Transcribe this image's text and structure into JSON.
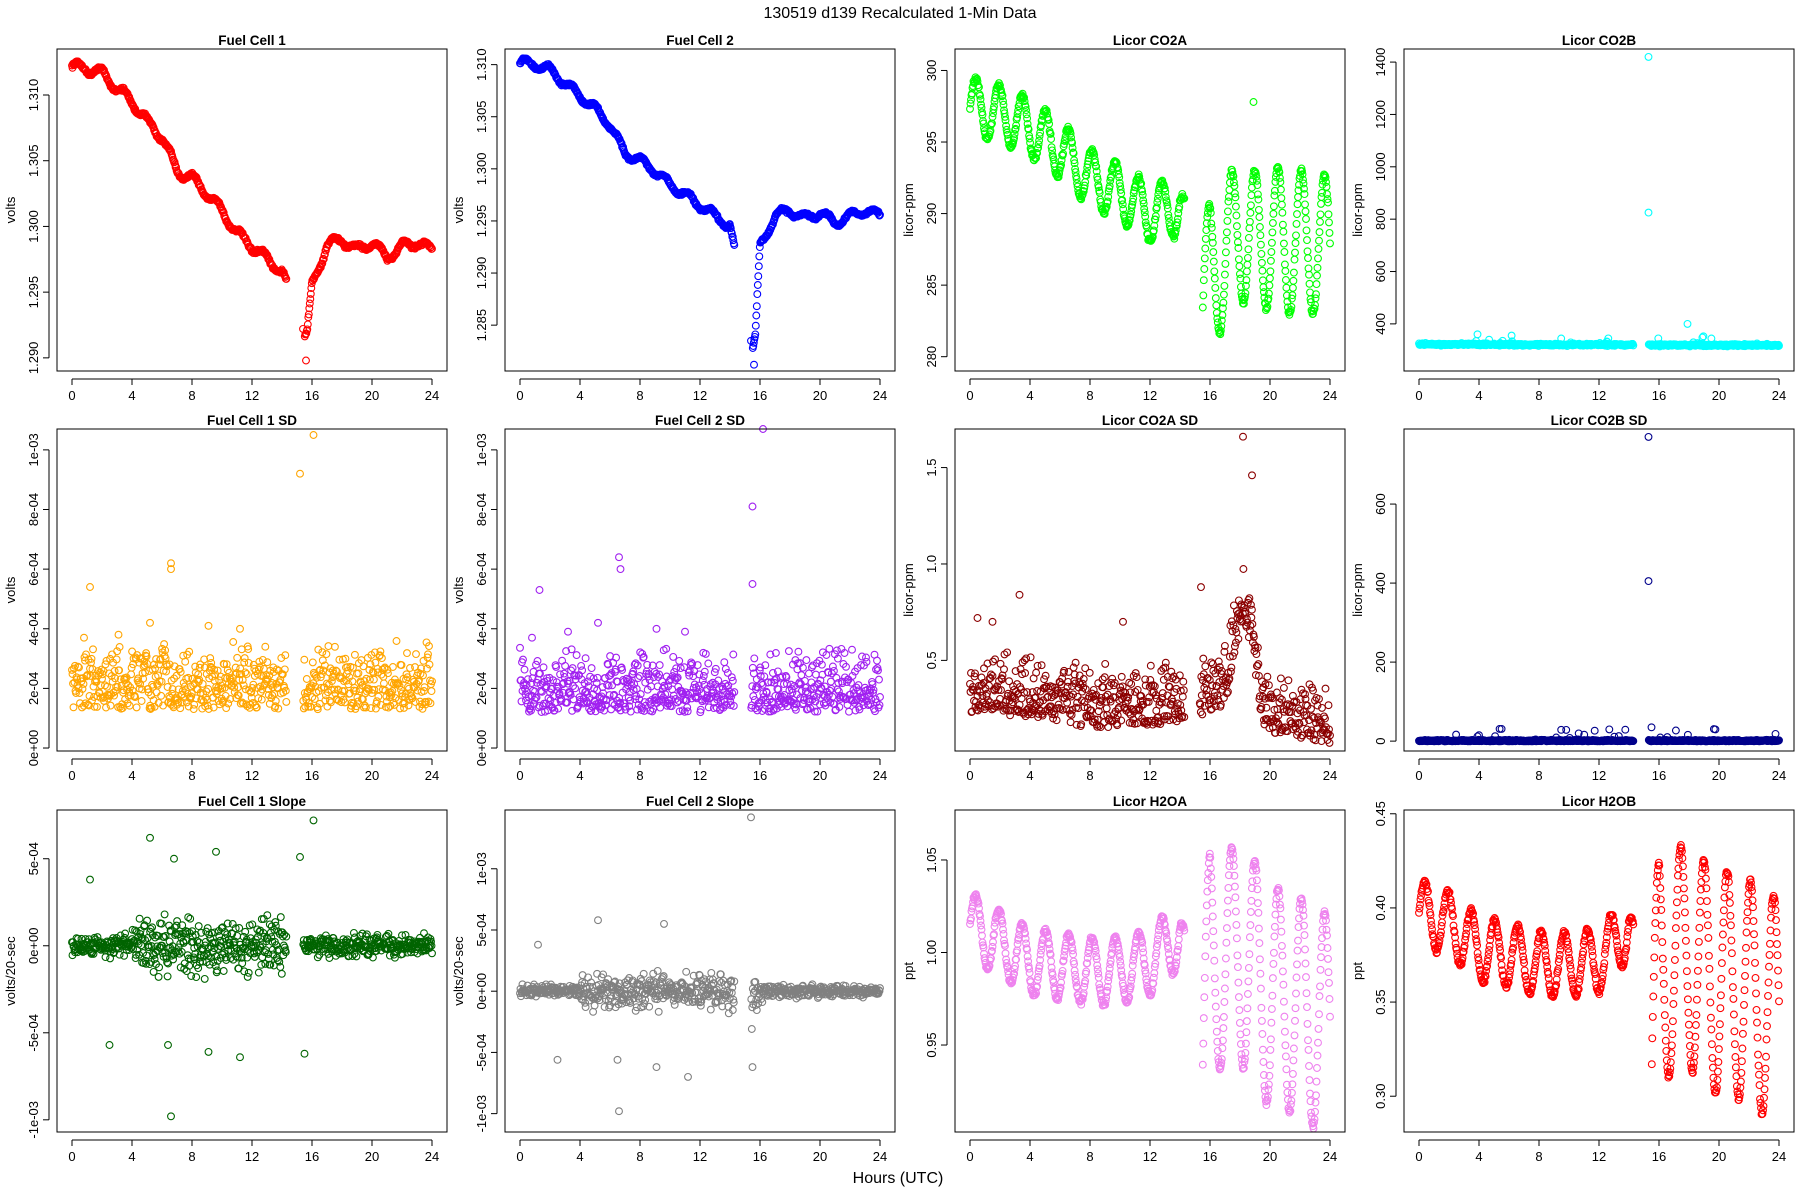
{
  "figure": {
    "title": "130519   d139   Recalculated 1-Min Data",
    "xlabel": "Hours (UTC)"
  },
  "chart_data": [
    {
      "type": "scatter",
      "title": "Fuel Cell 1",
      "xlabel": "",
      "ylabel": "volts",
      "color": "#ff0000",
      "xlim": [
        -1,
        25
      ],
      "ylim": [
        1.289,
        1.3135
      ],
      "xticks": [
        "0",
        "4",
        "8",
        "12",
        "16",
        "20",
        "24"
      ],
      "yticks": [
        {
          "v": 1.29,
          "label": "1.290"
        },
        {
          "v": 1.295,
          "label": "1.295"
        },
        {
          "v": 1.3,
          "label": "1.300"
        },
        {
          "v": 1.305,
          "label": "1.305"
        },
        {
          "v": 1.31,
          "label": "1.310"
        }
      ],
      "gap": [
        14.3,
        15.5
      ],
      "series": [
        {
          "x": [
            0,
            1,
            2,
            3,
            4,
            5,
            6,
            6.5,
            7,
            8,
            9,
            10,
            11,
            12,
            13,
            14,
            15.5,
            15.7,
            16,
            17,
            18,
            19,
            20,
            21,
            22,
            23,
            24
          ],
          "y": [
            1.3122,
            1.312,
            1.3117,
            1.3105,
            1.3095,
            1.308,
            1.3068,
            1.3055,
            1.3042,
            1.3037,
            1.3025,
            1.3012,
            1.2995,
            1.2985,
            1.2975,
            1.2966,
            1.2915,
            1.292,
            1.2955,
            1.2986,
            1.299,
            1.2982,
            1.2988,
            1.2976,
            1.2985,
            1.2988,
            1.2982
          ]
        }
      ],
      "wiggle": 0.00035,
      "noise": 0.00018,
      "outliers": [
        [
          15.6,
          1.2898
        ],
        [
          15.4,
          1.2922
        ]
      ]
    },
    {
      "type": "scatter",
      "title": "Fuel Cell 2",
      "xlabel": "",
      "ylabel": "volts",
      "color": "#0000ff",
      "xlim": [
        -1,
        25
      ],
      "ylim": [
        1.2806,
        1.3115
      ],
      "xticks": [
        "0",
        "4",
        "8",
        "12",
        "16",
        "20",
        "24"
      ],
      "yticks": [
        {
          "v": 1.285,
          "label": "1.285"
        },
        {
          "v": 1.29,
          "label": "1.290"
        },
        {
          "v": 1.295,
          "label": "1.295"
        },
        {
          "v": 1.3,
          "label": "1.300"
        },
        {
          "v": 1.305,
          "label": "1.305"
        },
        {
          "v": 1.31,
          "label": "1.310"
        }
      ],
      "gap": [
        14.3,
        15.5
      ],
      "series": [
        {
          "x": [
            0,
            1,
            2,
            3,
            4,
            5,
            6,
            6.5,
            7,
            8,
            9,
            10,
            11,
            12,
            13,
            14,
            15.5,
            15.7,
            16,
            17,
            18,
            19,
            20,
            21,
            22,
            23,
            24
          ],
          "y": [
            1.3102,
            1.31,
            1.3095,
            1.3082,
            1.307,
            1.3058,
            1.3042,
            1.3028,
            1.3015,
            1.3008,
            1.2998,
            1.2985,
            1.2975,
            1.2965,
            1.2955,
            1.2945,
            1.2825,
            1.284,
            1.2925,
            1.2955,
            1.296,
            1.2952,
            1.2958,
            1.2948,
            1.2955,
            1.296,
            1.2955
          ]
        }
      ],
      "wiggle": 0.0004,
      "noise": 0.0002,
      "outliers": [
        [
          15.6,
          1.2812
        ],
        [
          15.4,
          1.2835
        ]
      ]
    },
    {
      "type": "scatter",
      "title": "Licor CO2A",
      "xlabel": "",
      "ylabel": "licor-ppm",
      "color": "#00ff00",
      "xlim": [
        -1,
        25
      ],
      "ylim": [
        279.0,
        301.5
      ],
      "xticks": [
        "0",
        "4",
        "8",
        "12",
        "16",
        "20",
        "24"
      ],
      "yticks": [
        {
          "v": 280,
          "label": "280"
        },
        {
          "v": 285,
          "label": "285"
        },
        {
          "v": 290,
          "label": "290"
        },
        {
          "v": 295,
          "label": "295"
        },
        {
          "v": 300,
          "label": "300"
        }
      ],
      "gap": [
        14.3,
        15.5
      ],
      "series": [
        {
          "x": [
            0,
            2,
            4,
            6,
            8,
            10,
            12,
            14,
            15.5,
            16,
            17,
            18,
            19,
            20,
            21,
            22,
            23,
            24
          ],
          "y": [
            297.5,
            297,
            296,
            294.5,
            292.5,
            291.5,
            290,
            290.5,
            283,
            286,
            287,
            289,
            288,
            288.5,
            288,
            288,
            288,
            287.5
          ]
        }
      ],
      "wiggle": 2.0,
      "wiggle2": 5.0,
      "noise": 0.25,
      "outliers": [
        [
          18.9,
          297.8
        ]
      ]
    },
    {
      "type": "scatter",
      "title": "Licor CO2B",
      "xlabel": "",
      "ylabel": "licor-ppm",
      "color": "#00ffff",
      "xlim": [
        -1,
        25
      ],
      "ylim": [
        220,
        1450
      ],
      "xticks": [
        "0",
        "4",
        "8",
        "12",
        "16",
        "20",
        "24"
      ],
      "yticks": [
        {
          "v": 400,
          "label": "400"
        },
        {
          "v": 600,
          "label": "600"
        },
        {
          "v": 800,
          "label": "800"
        },
        {
          "v": 1000,
          "label": "1000"
        },
        {
          "v": 1200,
          "label": "1200"
        },
        {
          "v": 1400,
          "label": "1400"
        }
      ],
      "gap": [
        14.3,
        15.3
      ],
      "series": [
        {
          "x": [
            0,
            24
          ],
          "y": [
            322,
            318
          ]
        }
      ],
      "wiggle": 0,
      "noise": 6,
      "spikes": 35,
      "outliers": [
        [
          15.3,
          1420
        ],
        [
          15.3,
          825
        ],
        [
          17.9,
          400
        ],
        [
          3.9,
          360
        ]
      ]
    },
    {
      "type": "scatter",
      "title": "Fuel Cell 1 SD",
      "xlabel": "",
      "ylabel": "volts",
      "color": "#ffa500",
      "xlim": [
        -1,
        25
      ],
      "ylim": [
        -1e-05,
        0.00107
      ],
      "xticks": [
        "0",
        "4",
        "8",
        "12",
        "16",
        "20",
        "24"
      ],
      "yticks": [
        {
          "v": 0,
          "label": "0e+00"
        },
        {
          "v": 0.0002,
          "label": "2e-04"
        },
        {
          "v": 0.0004,
          "label": "4e-04"
        },
        {
          "v": 0.0006,
          "label": "6e-04"
        },
        {
          "v": 0.0008,
          "label": "8e-04"
        },
        {
          "v": 0.001,
          "label": "1e-03"
        }
      ],
      "gap": [
        14.3,
        15.4
      ],
      "series": [
        {
          "x": [
            0,
            24
          ],
          "y": [
            0.00011,
            0.00011
          ]
        }
      ],
      "band": [
        2e-05,
        0.00019
      ],
      "outliers": [
        [
          1.2,
          0.00054
        ],
        [
          6.6,
          0.00062
        ],
        [
          6.6,
          0.0006
        ],
        [
          15.2,
          0.00092
        ],
        [
          16.1,
          0.00105
        ],
        [
          5.2,
          0.00042
        ],
        [
          9.1,
          0.00041
        ],
        [
          11.2,
          0.0004
        ],
        [
          0.8,
          0.00037
        ],
        [
          3.1,
          0.00038
        ]
      ]
    },
    {
      "type": "scatter",
      "title": "Fuel Cell 2 SD",
      "xlabel": "",
      "ylabel": "volts",
      "color": "#a020f0",
      "xlim": [
        -1,
        25
      ],
      "ylim": [
        -1e-05,
        0.00107
      ],
      "xticks": [
        "0",
        "4",
        "8",
        "12",
        "16",
        "20",
        "24"
      ],
      "yticks": [
        {
          "v": 0,
          "label": "0e+00"
        },
        {
          "v": 0.0002,
          "label": "2e-04"
        },
        {
          "v": 0.0004,
          "label": "4e-04"
        },
        {
          "v": 0.0006,
          "label": "6e-04"
        },
        {
          "v": 0.0008,
          "label": "8e-04"
        },
        {
          "v": 0.001,
          "label": "1e-03"
        }
      ],
      "gap": [
        14.3,
        15.4
      ],
      "series": [
        {
          "x": [
            0,
            24
          ],
          "y": [
            0.0001,
            0.0001
          ]
        }
      ],
      "band": [
        2e-05,
        0.00018
      ],
      "outliers": [
        [
          1.3,
          0.00053
        ],
        [
          6.6,
          0.00064
        ],
        [
          6.7,
          0.0006
        ],
        [
          15.5,
          0.00081
        ],
        [
          16.2,
          0.00107
        ],
        [
          15.5,
          0.00055
        ],
        [
          5.2,
          0.00042
        ],
        [
          9.1,
          0.0004
        ],
        [
          11,
          0.00039
        ],
        [
          0.8,
          0.00037
        ],
        [
          3.2,
          0.00039
        ]
      ]
    },
    {
      "type": "scatter",
      "title": "Licor CO2A SD",
      "xlabel": "",
      "ylabel": "licor-ppm",
      "color": "#8b0000",
      "xlim": [
        -1,
        25
      ],
      "ylim": [
        0.03,
        1.7
      ],
      "xticks": [
        "0",
        "4",
        "8",
        "12",
        "16",
        "20",
        "24"
      ],
      "yticks": [
        {
          "v": 0.5,
          "label": "0.5"
        },
        {
          "v": 1.0,
          "label": "1.0"
        },
        {
          "v": 1.5,
          "label": "1.5"
        }
      ],
      "gap": [
        14.3,
        15.3
      ],
      "series": [
        {
          "x": [
            0,
            4,
            8,
            12,
            14,
            15.5,
            17,
            17.5,
            18,
            18.3,
            18.8,
            19.5,
            21,
            24
          ],
          "y": [
            0.32,
            0.3,
            0.25,
            0.26,
            0.28,
            0.32,
            0.35,
            0.55,
            0.7,
            0.8,
            0.65,
            0.25,
            0.2,
            0.17
          ]
        }
      ],
      "band": [
        -0.1,
        0.15
      ],
      "outliers": [
        [
          18.2,
          1.66
        ],
        [
          18.8,
          1.46
        ],
        [
          3.3,
          0.84
        ],
        [
          10.2,
          0.7
        ],
        [
          15.4,
          0.88
        ],
        [
          0.5,
          0.72
        ],
        [
          1.5,
          0.7
        ]
      ]
    },
    {
      "type": "scatter",
      "title": "Licor CO2B SD",
      "xlabel": "",
      "ylabel": "licor-ppm",
      "color": "#00008b",
      "xlim": [
        -1,
        25
      ],
      "ylim": [
        -25,
        790
      ],
      "xticks": [
        "0",
        "4",
        "8",
        "12",
        "16",
        "20",
        "24"
      ],
      "yticks": [
        {
          "v": 0,
          "label": "0"
        },
        {
          "v": 200,
          "label": "200"
        },
        {
          "v": 400,
          "label": "400"
        },
        {
          "v": 600,
          "label": "600"
        }
      ],
      "gap": [
        14.3,
        15.3
      ],
      "series": [
        {
          "x": [
            0,
            24
          ],
          "y": [
            1,
            1
          ]
        }
      ],
      "band": [
        -1.5,
        1.5
      ],
      "spikes": 30,
      "outliers": [
        [
          15.3,
          770
        ],
        [
          15.3,
          405
        ],
        [
          15.5,
          35
        ],
        [
          3.9,
          12
        ],
        [
          4,
          15
        ]
      ]
    },
    {
      "type": "scatter",
      "title": "Fuel Cell 1 Slope",
      "xlabel": "",
      "ylabel": "volts/20-sec",
      "color": "#006400",
      "xlim": [
        -1,
        25
      ],
      "ylim": [
        -0.00107,
        0.00078
      ],
      "xticks": [
        "0",
        "4",
        "8",
        "12",
        "16",
        "20",
        "24"
      ],
      "yticks": [
        {
          "v": -0.001,
          "label": "-1e-03"
        },
        {
          "v": -0.0005,
          "label": "-5e-04"
        },
        {
          "v": 0,
          "label": "0e+00"
        },
        {
          "v": 0.0005,
          "label": "5e-04"
        }
      ],
      "gap": [
        14.3,
        15.4
      ],
      "series": [
        {
          "x": [
            0,
            24
          ],
          "y": [
            0,
            0
          ]
        }
      ],
      "band": [
        -9e-05,
        9e-05
      ],
      "wide": [
        4,
        14.3,
        0.00022
      ],
      "outliers": [
        [
          16.1,
          0.00072
        ],
        [
          6.6,
          -0.00098
        ],
        [
          5.2,
          0.00062
        ],
        [
          9.6,
          0.00054
        ],
        [
          11.2,
          -0.00064
        ],
        [
          15.5,
          -0.00062
        ],
        [
          15.2,
          0.00051
        ],
        [
          2.5,
          -0.00057
        ],
        [
          1.2,
          0.00038
        ],
        [
          9.1,
          -0.00061
        ],
        [
          6.4,
          -0.00057
        ],
        [
          6.8,
          0.0005
        ]
      ]
    },
    {
      "type": "scatter",
      "title": "Fuel Cell 2 Slope",
      "xlabel": "",
      "ylabel": "volts/20-sec",
      "color": "#808080",
      "xlim": [
        -1,
        25
      ],
      "ylim": [
        -0.00115,
        0.00148
      ],
      "xticks": [
        "0",
        "4",
        "8",
        "12",
        "16",
        "20",
        "24"
      ],
      "yticks": [
        {
          "v": -0.001,
          "label": "-1e-03"
        },
        {
          "v": -0.0005,
          "label": "-5e-04"
        },
        {
          "v": 0,
          "label": "0e+00"
        },
        {
          "v": 0.0005,
          "label": "5e-04"
        },
        {
          "v": 0.001,
          "label": "1e-03"
        }
      ],
      "gap": [
        14.3,
        15.4
      ],
      "series": [
        {
          "x": [
            0,
            24
          ],
          "y": [
            0,
            0
          ]
        }
      ],
      "band": [
        -7e-05,
        7e-05
      ],
      "wide": [
        4,
        14.3,
        0.0002
      ],
      "tail": [
        15.4,
        16.2,
        0.00045
      ],
      "outliers": [
        [
          15.4,
          0.00142
        ],
        [
          6.6,
          -0.00098
        ],
        [
          11.2,
          -0.0007
        ],
        [
          5.2,
          0.00058
        ],
        [
          9.6,
          0.00055
        ],
        [
          15.5,
          -0.00062
        ],
        [
          2.5,
          -0.00056
        ],
        [
          1.2,
          0.00038
        ],
        [
          9.1,
          -0.00062
        ],
        [
          6.5,
          -0.00056
        ]
      ]
    },
    {
      "type": "scatter",
      "title": "Licor H2OA",
      "xlabel": "",
      "ylabel": "ppt",
      "color": "#ee82ee",
      "xlim": [
        -1,
        25
      ],
      "ylim": [
        0.903,
        1.077
      ],
      "xticks": [
        "0",
        "4",
        "8",
        "12",
        "16",
        "20",
        "24"
      ],
      "yticks": [
        {
          "v": 0.95,
          "label": "0.95"
        },
        {
          "v": 1.0,
          "label": "1.00"
        },
        {
          "v": 1.05,
          "label": "1.05"
        }
      ],
      "gap": [
        14.3,
        15.5
      ],
      "series": [
        {
          "x": [
            0,
            2,
            4,
            6,
            8,
            10,
            12,
            14,
            15.5,
            16,
            17,
            18,
            19,
            20,
            21,
            22,
            23,
            24
          ],
          "y": [
            1.015,
            1.005,
            0.995,
            0.993,
            0.99,
            0.99,
            0.995,
            1.01,
            0.93,
            1.0,
            0.995,
            1.0,
            0.99,
            0.975,
            0.975,
            0.97,
            0.965,
            0.96
          ]
        }
      ],
      "wiggle": 0.018,
      "wiggle2": 0.06,
      "noise": 0.002,
      "outliers": []
    },
    {
      "type": "scatter",
      "title": "Licor H2OB",
      "xlabel": "",
      "ylabel": "ppt",
      "color": "#ff0000",
      "xlim": [
        -1,
        25
      ],
      "ylim": [
        0.281,
        0.452
      ],
      "xticks": [
        "0",
        "4",
        "8",
        "12",
        "16",
        "20",
        "24"
      ],
      "yticks": [
        {
          "v": 0.3,
          "label": "0.30"
        },
        {
          "v": 0.35,
          "label": "0.35"
        },
        {
          "v": 0.4,
          "label": "0.40"
        },
        {
          "v": 0.45,
          "label": "0.45"
        }
      ],
      "gap": [
        14.3,
        15.5
      ],
      "series": [
        {
          "x": [
            0,
            2,
            4,
            6,
            8,
            10,
            12,
            14,
            15.5,
            16,
            17,
            18,
            19,
            20,
            21,
            22,
            23,
            24
          ],
          "y": [
            0.398,
            0.392,
            0.378,
            0.375,
            0.37,
            0.37,
            0.372,
            0.39,
            0.31,
            0.37,
            0.37,
            0.375,
            0.365,
            0.36,
            0.36,
            0.355,
            0.35,
            0.345
          ]
        }
      ],
      "wiggle": 0.017,
      "wiggle2": 0.06,
      "noise": 0.002,
      "outliers": []
    }
  ]
}
